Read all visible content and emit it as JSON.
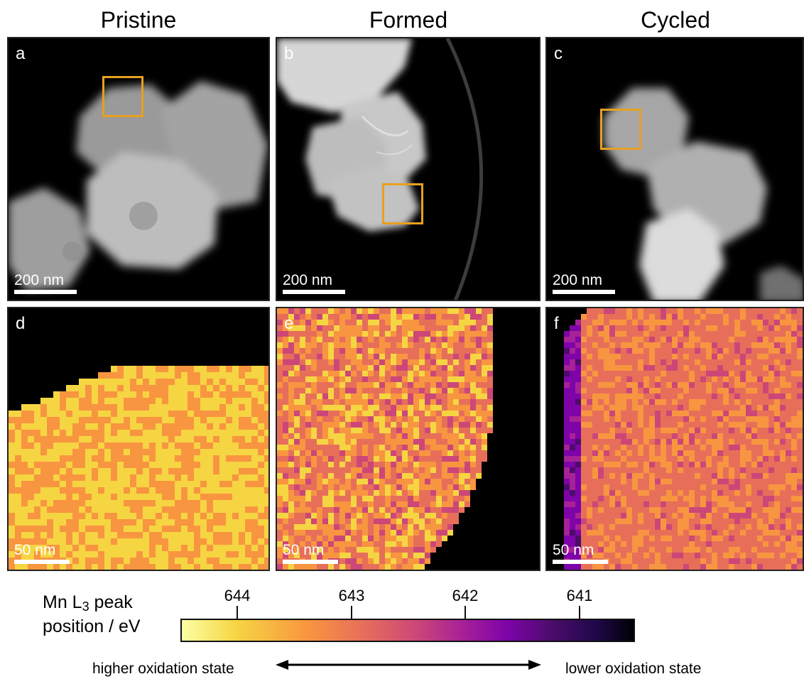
{
  "columns": [
    {
      "title": "Pristine"
    },
    {
      "title": "Formed"
    },
    {
      "title": "Cycled"
    }
  ],
  "panels": {
    "a": {
      "letter": "a",
      "scale_label": "200 nm"
    },
    "b": {
      "letter": "b",
      "scale_label": "200 nm"
    },
    "c": {
      "letter": "c",
      "scale_label": "200 nm"
    },
    "d": {
      "letter": "d",
      "scale_label": "50 nm"
    },
    "e": {
      "letter": "e",
      "scale_label": "50 nm"
    },
    "f": {
      "letter": "f",
      "scale_label": "50 nm"
    }
  },
  "colorbar": {
    "title_main": "Mn L",
    "title_sub": "3",
    "title_rest": " peak",
    "title_line2": "position / eV",
    "ticks": [
      "644",
      "643",
      "642",
      "641"
    ],
    "colormap": [
      "#fcffa4",
      "#f6d543",
      "#f89540",
      "#e76f5a",
      "#cc4778",
      "#a72197",
      "#7e03a8",
      "#4b0c6b",
      "#1e0848",
      "#000004"
    ]
  },
  "oxidation": {
    "left": "higher oxidation state",
    "right": "lower oxidation state"
  },
  "colors": {
    "highlight_box": "#e8a020"
  }
}
